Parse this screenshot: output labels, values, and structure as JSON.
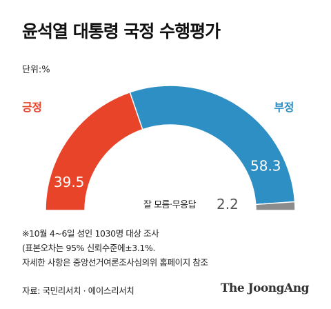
{
  "title": "윤석열 대통령 국정 수행평가",
  "unit": "단위:%",
  "chart_data": {
    "type": "pie",
    "variant": "semicircle-donut",
    "categories": [
      "긍정",
      "부정",
      "잘 모름·무응답"
    ],
    "values": [
      39.5,
      58.3,
      2.2
    ],
    "value_labels": [
      "39.5",
      "58.3",
      "2.2"
    ],
    "colors": [
      "#e8442a",
      "#2e8fc4",
      "#8c8c8c"
    ]
  },
  "legend": {
    "positive": "긍정",
    "negative": "부정",
    "neutral": "잘 모름·무응답"
  },
  "notes": [
    "※10월 4~6일 성인 1030명 대상 조사",
    "(표본오차는 95% 신뢰수준에±3.1%.",
    "자세한 사항은 중앙선거여론조사심의위 홈페이지 참조"
  ],
  "source": "자료: 국민리서치 · 에이스리서치",
  "brand": "The JoongAng"
}
